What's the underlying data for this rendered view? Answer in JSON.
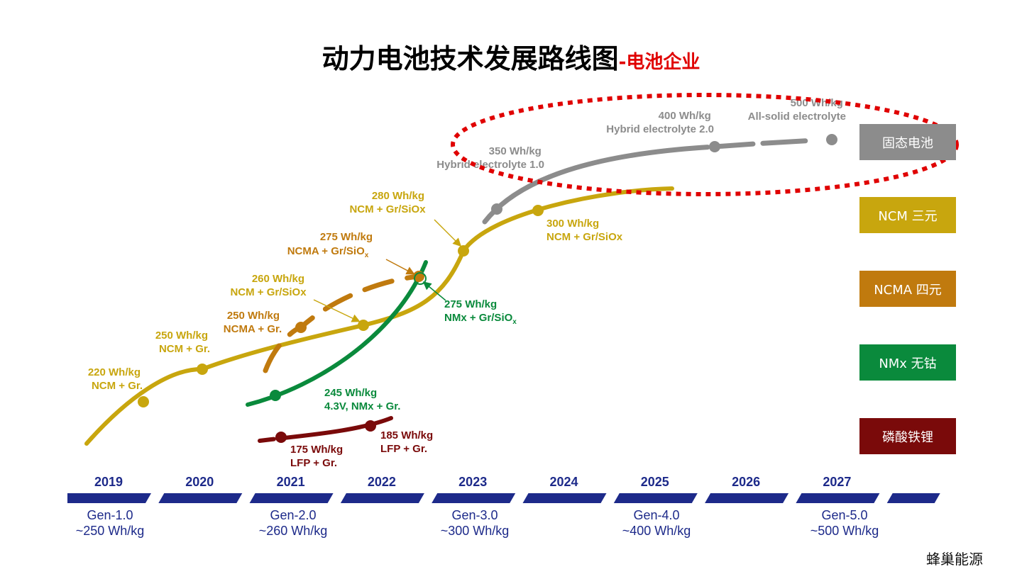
{
  "title": {
    "main": "动力电池技术发展路线图",
    "sub": "-电池企业"
  },
  "timeline": {
    "years": [
      "2019",
      "2020",
      "2021",
      "2022",
      "2023",
      "2024",
      "2025",
      "2026",
      "2027"
    ],
    "generations": [
      {
        "gen": "Gen-1.0",
        "energy": "~250 Wh/kg"
      },
      {
        "gen": "Gen-2.0",
        "energy": "~260 Wh/kg"
      },
      {
        "gen": "Gen-3.0",
        "energy": "~300 Wh/kg"
      },
      {
        "gen": "Gen-4.0",
        "energy": "~400 Wh/kg"
      },
      {
        "gen": "Gen-5.0",
        "energy": "~500 Wh/kg"
      }
    ]
  },
  "legend": [
    {
      "label": "固态电池",
      "color": "#8c8c8c"
    },
    {
      "label": "NCM 三元",
      "color": "#c8a60e"
    },
    {
      "label": "NCMA 四元",
      "color": "#c07a0e"
    },
    {
      "label": "NMx 无钴",
      "color": "#0a8a3c"
    },
    {
      "label": "磷酸铁锂",
      "color": "#7a0a0a"
    }
  ],
  "annotations": {
    "ncm_220": [
      "220 Wh/kg",
      "NCM + Gr."
    ],
    "ncm_250": [
      "250 Wh/kg",
      "NCM + Gr."
    ],
    "ncm_260": [
      "260 Wh/kg",
      "NCM + Gr/SiOx"
    ],
    "ncma_250": [
      "250 Wh/kg",
      "NCMA + Gr."
    ],
    "ncma_275": [
      "275 Wh/kg",
      "NCMA + Gr/SiO",
      "x"
    ],
    "ncm_280": [
      "280 Wh/kg",
      "NCM + Gr/SiOx"
    ],
    "ncm_300": [
      "300 Wh/kg",
      "NCM + Gr/SiOx"
    ],
    "nmx_275": [
      "275 Wh/kg",
      "NMx + Gr/SiO",
      "x"
    ],
    "nmx_245": [
      "245 Wh/kg",
      "4.3V, NMx + Gr."
    ],
    "lfp_175": [
      "175 Wh/kg",
      "LFP + Gr."
    ],
    "lfp_185": [
      "185 Wh/kg",
      "LFP + Gr."
    ],
    "ss_350": [
      "350 Wh/kg",
      "Hybrid electrolyte 1.0"
    ],
    "ss_400": [
      "400 Wh/kg",
      "Hybrid electrolyte 2.0"
    ],
    "ss_500": [
      "500 Wh/kg",
      "All-solid electrolyte"
    ]
  },
  "footer": "蜂巢能源"
}
